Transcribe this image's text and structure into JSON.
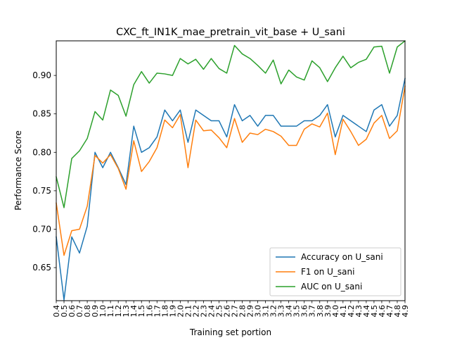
{
  "chart_data": {
    "type": "line",
    "title": "CXC_ft_IN1K_mae_pretrain_vit_base + U_sani",
    "xlabel": "Training set portion",
    "ylabel": "Performance Score",
    "x": [
      0.4,
      0.5,
      0.6,
      0.7,
      0.8,
      0.9,
      1.0,
      1.1,
      1.2,
      1.3,
      1.4,
      1.5,
      1.6,
      1.7,
      1.8,
      1.9,
      2.0,
      2.1,
      2.2,
      2.3,
      2.4,
      2.5,
      2.6,
      2.7,
      2.8,
      2.9,
      3.0,
      3.1,
      3.2,
      3.3,
      3.4,
      3.5,
      3.6,
      3.7,
      3.8,
      3.9,
      4.0,
      4.1,
      4.2,
      4.3,
      4.4,
      4.5,
      4.6,
      4.7,
      4.8,
      4.9
    ],
    "xticks": [
      "0.4",
      "0.5",
      "0.6",
      "0.7",
      "0.8",
      "0.9",
      "1.0",
      "1.1",
      "1.2",
      "1.3",
      "1.4",
      "1.5",
      "1.6",
      "1.7",
      "1.8",
      "1.9",
      "2.0",
      "2.1",
      "2.2",
      "2.3",
      "2.4",
      "2.5",
      "2.6",
      "2.7",
      "2.8",
      "2.9",
      "3.0",
      "3.1",
      "3.2",
      "3.3",
      "3.4",
      "3.5",
      "3.6",
      "3.7",
      "3.8",
      "3.9",
      "4.0",
      "4.1",
      "4.2",
      "4.3",
      "4.4",
      "4.5",
      "4.6",
      "4.7",
      "4.8",
      "4.9"
    ],
    "yticks": [
      "0.65",
      "0.70",
      "0.75",
      "0.80",
      "0.85",
      "0.90"
    ],
    "ytick_values": [
      0.65,
      0.7,
      0.75,
      0.8,
      0.85,
      0.9
    ],
    "xlim": [
      0.4,
      4.9
    ],
    "ylim": [
      0.607,
      0.945
    ],
    "grid": false,
    "legend_position": "lower-right",
    "series": [
      {
        "name": "Accuracy on U_sani",
        "color": "#1f77b4",
        "values": [
          0.69,
          0.608,
          0.69,
          0.669,
          0.704,
          0.8,
          0.78,
          0.8,
          0.78,
          0.758,
          0.834,
          0.8,
          0.806,
          0.82,
          0.855,
          0.841,
          0.855,
          0.813,
          0.855,
          0.848,
          0.841,
          0.841,
          0.82,
          0.862,
          0.841,
          0.848,
          0.834,
          0.848,
          0.848,
          0.834,
          0.834,
          0.834,
          0.841,
          0.841,
          0.848,
          0.862,
          0.82,
          0.848,
          0.841,
          0.834,
          0.827,
          0.855,
          0.862,
          0.834,
          0.848,
          0.896
        ]
      },
      {
        "name": "F1 on U_sani",
        "color": "#ff7f0e",
        "values": [
          0.734,
          0.666,
          0.698,
          0.7,
          0.73,
          0.796,
          0.786,
          0.797,
          0.779,
          0.752,
          0.815,
          0.775,
          0.788,
          0.806,
          0.842,
          0.832,
          0.849,
          0.78,
          0.842,
          0.828,
          0.829,
          0.819,
          0.806,
          0.844,
          0.813,
          0.825,
          0.823,
          0.83,
          0.827,
          0.821,
          0.809,
          0.809,
          0.83,
          0.837,
          0.833,
          0.851,
          0.797,
          0.843,
          0.827,
          0.809,
          0.817,
          0.838,
          0.848,
          0.818,
          0.828,
          0.886
        ]
      },
      {
        "name": "AUC on U_sani",
        "color": "#2ca02c",
        "values": [
          0.768,
          0.728,
          0.792,
          0.802,
          0.818,
          0.853,
          0.842,
          0.881,
          0.874,
          0.847,
          0.888,
          0.905,
          0.89,
          0.903,
          0.902,
          0.9,
          0.922,
          0.915,
          0.921,
          0.908,
          0.922,
          0.909,
          0.903,
          0.939,
          0.928,
          0.922,
          0.913,
          0.903,
          0.92,
          0.889,
          0.907,
          0.898,
          0.894,
          0.919,
          0.91,
          0.892,
          0.91,
          0.925,
          0.91,
          0.917,
          0.921,
          0.937,
          0.938,
          0.903,
          0.937,
          0.945
        ]
      }
    ]
  }
}
